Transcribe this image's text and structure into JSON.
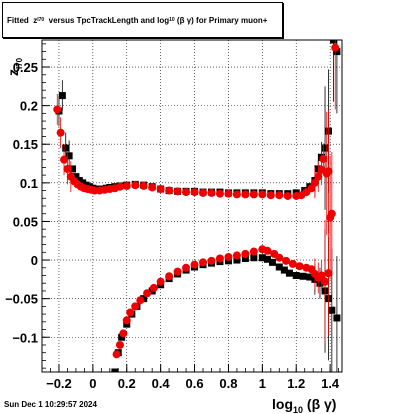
{
  "title": {
    "prefix": "Fitted",
    "var": "z",
    "var_sub": "I70",
    "middle": "versus TpcTrackLength and log",
    "log_sub": "10",
    "expr": "(β γ)",
    "suffix": "for Primary muon+"
  },
  "footer": "Sun Dec  1 10:29:57 2024",
  "colors": {
    "black_series": "#000000",
    "red_series": "#ee0000",
    "grid": "#000000"
  },
  "chart_data": {
    "type": "scatter",
    "title": "Fitted z_I70 versus TpcTrackLength and log_10 (β γ) for Primary muon+",
    "xlabel": "log_10 (β γ)",
    "ylabel": "z_I70",
    "xlim": [
      -0.3,
      1.47
    ],
    "ylim": [
      -0.145,
      0.285
    ],
    "xticks": [
      -0.2,
      0,
      0.2,
      0.4,
      0.6,
      0.8,
      1,
      1.2,
      1.4
    ],
    "xtick_labels": [
      "−0.2",
      "0",
      "0.2",
      "0.4",
      "0.6",
      "0.8",
      "1",
      "1.2",
      "1.4"
    ],
    "yticks": [
      -0.1,
      -0.05,
      0,
      0.05,
      0.1,
      0.15,
      0.2,
      0.25
    ],
    "ytick_labels": [
      "−0.1",
      "−0.05",
      "0",
      "0.05",
      "0.1",
      "0.15",
      "0.2",
      "0.25"
    ],
    "grid": true,
    "series": [
      {
        "marker": "square",
        "color": "#000000",
        "points": [
          [
            -0.2,
            0.193
          ],
          [
            -0.18,
            0.213
          ],
          [
            -0.16,
            0.145
          ],
          [
            -0.14,
            0.135
          ],
          [
            -0.12,
            0.118
          ],
          [
            -0.1,
            0.108
          ],
          [
            -0.08,
            0.103
          ],
          [
            -0.06,
            0.1
          ],
          [
            -0.04,
            0.097
          ],
          [
            -0.02,
            0.095
          ],
          [
            0.0,
            0.093
          ],
          [
            0.02,
            0.092
          ],
          [
            0.05,
            0.092
          ],
          [
            0.08,
            0.093
          ],
          [
            0.1,
            0.094
          ],
          [
            0.13,
            0.095
          ],
          [
            0.16,
            0.096
          ],
          [
            0.2,
            0.097
          ],
          [
            0.25,
            0.098
          ],
          [
            0.3,
            0.097
          ],
          [
            0.35,
            0.095
          ],
          [
            0.4,
            0.092
          ],
          [
            0.45,
            0.09
          ],
          [
            0.5,
            0.089
          ],
          [
            0.55,
            0.089
          ],
          [
            0.6,
            0.089
          ],
          [
            0.65,
            0.088
          ],
          [
            0.7,
            0.088
          ],
          [
            0.75,
            0.088
          ],
          [
            0.8,
            0.087
          ],
          [
            0.85,
            0.087
          ],
          [
            0.9,
            0.087
          ],
          [
            0.95,
            0.087
          ],
          [
            1.0,
            0.087
          ],
          [
            1.05,
            0.086
          ],
          [
            1.1,
            0.086
          ],
          [
            1.15,
            0.086
          ],
          [
            1.2,
            0.087
          ],
          [
            1.25,
            0.09
          ],
          [
            1.28,
            0.095
          ],
          [
            1.31,
            0.103
          ],
          [
            1.33,
            0.118
          ],
          [
            1.35,
            0.133
          ],
          [
            1.37,
            0.145
          ],
          [
            1.39,
            0.167
          ],
          [
            1.42,
            0.285
          ],
          [
            1.44,
            0.27
          ],
          [
            0.13,
            -0.145
          ],
          [
            0.15,
            -0.12
          ],
          [
            0.17,
            -0.1
          ],
          [
            0.2,
            -0.083
          ],
          [
            0.23,
            -0.07
          ],
          [
            0.26,
            -0.06
          ],
          [
            0.3,
            -0.05
          ],
          [
            0.35,
            -0.04
          ],
          [
            0.4,
            -0.032
          ],
          [
            0.45,
            -0.024
          ],
          [
            0.5,
            -0.018
          ],
          [
            0.55,
            -0.013
          ],
          [
            0.6,
            -0.009
          ],
          [
            0.65,
            -0.006
          ],
          [
            0.7,
            -0.004
          ],
          [
            0.75,
            -0.002
          ],
          [
            0.8,
            -0.001
          ],
          [
            0.85,
            0.0
          ],
          [
            0.9,
            0.002
          ],
          [
            0.95,
            0.003
          ],
          [
            1.0,
            0.003
          ],
          [
            1.03,
            0.001
          ],
          [
            1.06,
            -0.003
          ],
          [
            1.1,
            -0.009
          ],
          [
            1.13,
            -0.013
          ],
          [
            1.16,
            -0.017
          ],
          [
            1.2,
            -0.02
          ],
          [
            1.24,
            -0.021
          ],
          [
            1.28,
            -0.022
          ],
          [
            1.31,
            -0.025
          ],
          [
            1.34,
            -0.03
          ],
          [
            1.37,
            -0.04
          ],
          [
            1.39,
            -0.05
          ],
          [
            1.41,
            -0.065
          ],
          [
            1.44,
            -0.075
          ]
        ]
      },
      {
        "marker": "circle",
        "color": "#ee0000",
        "points": [
          [
            -0.21,
            0.195
          ],
          [
            -0.19,
            0.165
          ],
          [
            -0.17,
            0.13
          ],
          [
            -0.15,
            0.118
          ],
          [
            -0.13,
            0.108
          ],
          [
            -0.11,
            0.102
          ],
          [
            -0.09,
            0.098
          ],
          [
            -0.07,
            0.095
          ],
          [
            -0.05,
            0.093
          ],
          [
            -0.03,
            0.092
          ],
          [
            -0.01,
            0.091
          ],
          [
            0.01,
            0.09
          ],
          [
            0.04,
            0.09
          ],
          [
            0.07,
            0.091
          ],
          [
            0.1,
            0.092
          ],
          [
            0.13,
            0.093
          ],
          [
            0.16,
            0.095
          ],
          [
            0.2,
            0.096
          ],
          [
            0.25,
            0.097
          ],
          [
            0.3,
            0.096
          ],
          [
            0.35,
            0.094
          ],
          [
            0.4,
            0.092
          ],
          [
            0.45,
            0.09
          ],
          [
            0.5,
            0.089
          ],
          [
            0.55,
            0.088
          ],
          [
            0.6,
            0.088
          ],
          [
            0.65,
            0.087
          ],
          [
            0.7,
            0.087
          ],
          [
            0.75,
            0.086
          ],
          [
            0.8,
            0.086
          ],
          [
            0.85,
            0.085
          ],
          [
            0.9,
            0.085
          ],
          [
            0.95,
            0.085
          ],
          [
            1.0,
            0.085
          ],
          [
            1.05,
            0.084
          ],
          [
            1.1,
            0.084
          ],
          [
            1.15,
            0.083
          ],
          [
            1.2,
            0.083
          ],
          [
            1.23,
            0.084
          ],
          [
            1.26,
            0.088
          ],
          [
            1.29,
            0.093
          ],
          [
            1.31,
            0.1
          ],
          [
            1.33,
            0.108
          ],
          [
            1.35,
            0.117
          ],
          [
            1.36,
            0.131
          ],
          [
            1.38,
            0.112
          ],
          [
            1.39,
            0.115
          ],
          [
            1.4,
            0.055
          ],
          [
            1.41,
            0.06
          ],
          [
            1.43,
            0.275
          ],
          [
            0.14,
            -0.122
          ],
          [
            0.16,
            -0.11
          ],
          [
            0.18,
            -0.095
          ],
          [
            0.2,
            -0.078
          ],
          [
            0.22,
            -0.068
          ],
          [
            0.25,
            -0.06
          ],
          [
            0.28,
            -0.052
          ],
          [
            0.32,
            -0.043
          ],
          [
            0.36,
            -0.036
          ],
          [
            0.4,
            -0.028
          ],
          [
            0.45,
            -0.021
          ],
          [
            0.5,
            -0.015
          ],
          [
            0.55,
            -0.01
          ],
          [
            0.6,
            -0.006
          ],
          [
            0.65,
            -0.003
          ],
          [
            0.7,
            -0.001
          ],
          [
            0.75,
            0.002
          ],
          [
            0.8,
            0.004
          ],
          [
            0.85,
            0.006
          ],
          [
            0.9,
            0.008
          ],
          [
            0.95,
            0.011
          ],
          [
            1.0,
            0.014
          ],
          [
            1.03,
            0.012
          ],
          [
            1.07,
            0.008
          ],
          [
            1.1,
            0.003
          ],
          [
            1.14,
            -0.001
          ],
          [
            1.18,
            -0.005
          ],
          [
            1.22,
            -0.008
          ],
          [
            1.26,
            -0.01
          ],
          [
            1.29,
            -0.012
          ],
          [
            1.31,
            -0.018
          ],
          [
            1.33,
            -0.023
          ],
          [
            1.35,
            -0.02
          ],
          [
            1.37,
            -0.028
          ],
          [
            1.39,
            -0.017
          ]
        ]
      }
    ]
  }
}
